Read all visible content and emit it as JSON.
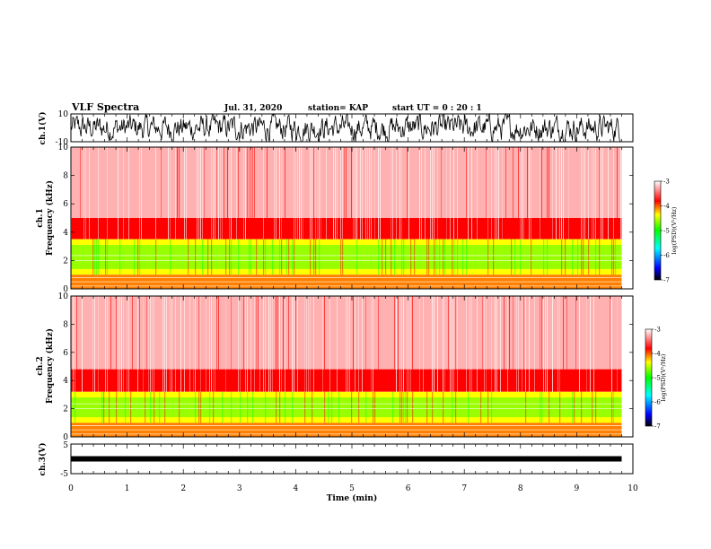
{
  "header": {
    "title": "VLF Spectra",
    "date": "Jul. 31, 2020",
    "station": "station= KAP",
    "start": "start UT =  0 : 20 : 1"
  },
  "chart_data": [
    {
      "type": "line",
      "title": "",
      "ylabel": "ch.1(V)",
      "ylim": [
        -10,
        10
      ],
      "yticks": [
        "10",
        "-10"
      ],
      "xlim": [
        0,
        10
      ],
      "description_values": {
        "data_end_min": 9.8,
        "amplitude_range": [
          -10,
          10
        ]
      }
    },
    {
      "type": "heatmap",
      "title": "",
      "ylabel_line1": "ch.1",
      "ylabel_line2": "Frequency  (kHz)",
      "ylim": [
        0,
        10
      ],
      "yticks": [
        "0",
        "2",
        "4",
        "6",
        "8",
        "10"
      ],
      "xlim": [
        0,
        10
      ],
      "colorbar": {
        "label": "log(PSD)(V²/Hz)",
        "ticks": [
          "-3",
          "-4",
          "-5",
          "-6",
          "-7"
        ],
        "range": [
          -7,
          -3
        ]
      },
      "bands_khz": {
        "low_strong": [
          0,
          1
        ],
        "green_yellow": [
          1,
          3.5
        ],
        "red": [
          3.5,
          5
        ],
        "speckled": [
          5,
          10
        ]
      },
      "data_end_min": 9.8
    },
    {
      "type": "heatmap",
      "title": "",
      "ylabel_line1": "ch.2",
      "ylabel_line2": "Frequency  (kHz)",
      "ylim": [
        0,
        10
      ],
      "yticks": [
        "0",
        "2",
        "4",
        "6",
        "8",
        "10"
      ],
      "xlim": [
        0,
        10
      ],
      "colorbar": {
        "label": "log(PSD)(V²/Hz)",
        "ticks": [
          "-3",
          "-4",
          "-5",
          "-6",
          "-7"
        ],
        "range": [
          -7,
          -3
        ]
      },
      "bands_khz": {
        "low_strong": [
          0,
          1
        ],
        "green_yellow": [
          1,
          3.2
        ],
        "red": [
          3.2,
          4.8
        ],
        "speckled": [
          4.8,
          10
        ]
      },
      "data_end_min": 9.8
    },
    {
      "type": "line",
      "title": "",
      "ylabel": "ch.3(V)",
      "ylim": [
        -5,
        5
      ],
      "yticks": [
        "5",
        "-5"
      ],
      "xlim": [
        0,
        10
      ],
      "xlabel": "Time  (min)",
      "xticks": [
        "0",
        "1",
        "2",
        "3",
        "4",
        "5",
        "6",
        "7",
        "8",
        "9",
        "10"
      ],
      "description_values": {
        "data_end_min": 9.8,
        "level_v": 0
      }
    }
  ],
  "colors": {
    "red": "#ff0000",
    "orange": "#ff8000",
    "yellow": "#ffff00",
    "green": "#00ff00",
    "cyan": "#00ffff",
    "blue": "#0000ff",
    "black": "#000000"
  }
}
